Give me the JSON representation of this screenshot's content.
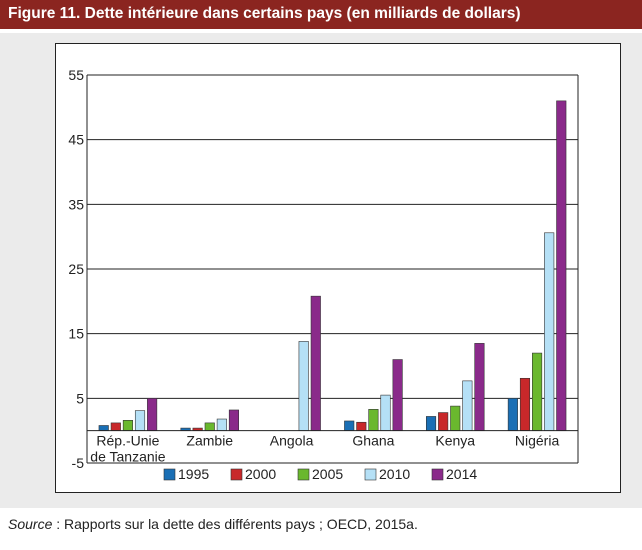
{
  "figure_title": "Figure 11. Dette intérieure dans certains pays (en milliards de dollars)",
  "source": {
    "label": "Source",
    "text": " : Rapports sur la dette des différents pays ; OECD, 2015a."
  },
  "colors": {
    "title_bar": "#8b2520",
    "panel_background": "#ebebeb",
    "series": [
      "#1a6fb5",
      "#c8282a",
      "#6ab82e",
      "#b5e0f6",
      "#8a2a8a"
    ]
  },
  "chart_data": {
    "type": "bar",
    "title": "",
    "xlabel": "",
    "ylabel": "",
    "categories": [
      "Rép.-Unie de Tanzanie",
      "Zambie",
      "Angola",
      "Ghana",
      "Kenya",
      "Nigéria"
    ],
    "category_lines": [
      [
        "Rép.-Unie",
        "de Tanzanie"
      ],
      [
        "Zambie"
      ],
      [
        "Angola"
      ],
      [
        "Ghana"
      ],
      [
        "Kenya"
      ],
      [
        "Nigéria"
      ]
    ],
    "ylim": [
      -5,
      55
    ],
    "yticks": [
      -5,
      5,
      15,
      25,
      35,
      45,
      55
    ],
    "grid": true,
    "legend_position": "bottom",
    "series": [
      {
        "name": "1995",
        "color": "#1a6fb5",
        "values": [
          0.8,
          0.4,
          0,
          1.5,
          2.2,
          5.0
        ]
      },
      {
        "name": "2000",
        "color": "#c8282a",
        "values": [
          1.2,
          0.4,
          0,
          1.3,
          2.8,
          8.1
        ]
      },
      {
        "name": "2005",
        "color": "#6ab82e",
        "values": [
          1.6,
          1.2,
          0,
          3.3,
          3.8,
          12.0
        ]
      },
      {
        "name": "2010",
        "color": "#b5e0f6",
        "values": [
          3.1,
          1.8,
          13.8,
          5.5,
          7.7,
          30.6
        ]
      },
      {
        "name": "2014",
        "color": "#8a2a8a",
        "values": [
          5.0,
          3.2,
          20.8,
          11.0,
          13.5,
          51.0
        ]
      }
    ]
  }
}
